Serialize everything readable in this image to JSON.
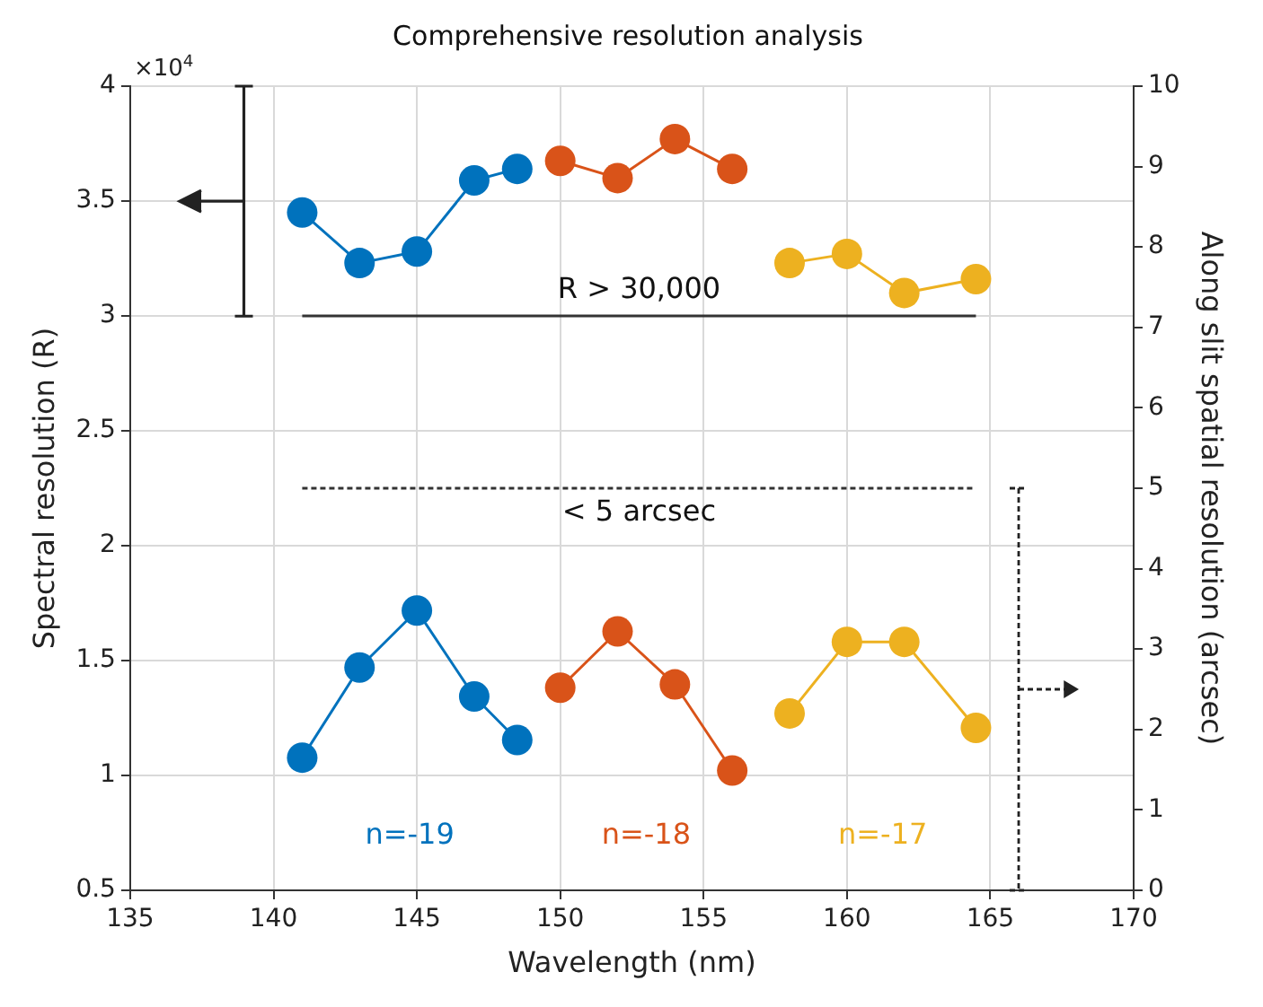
{
  "chart_data": {
    "type": "line",
    "title": "Comprehensive resolution analysis",
    "xlabel": "Wavelength (nm)",
    "ylabel": "Spectral resolution (R)",
    "y2label": "Along slit spatial resolution (arcsec)",
    "xlim": [
      135,
      170
    ],
    "xticks": [
      135,
      140,
      145,
      150,
      155,
      160,
      165,
      170
    ],
    "ylim": [
      0.5,
      4
    ],
    "yticks": [
      0.5,
      1,
      1.5,
      2,
      2.5,
      3,
      3.5,
      4
    ],
    "y2lim": [
      0,
      10
    ],
    "y2ticks": [
      0,
      1,
      2,
      3,
      4,
      5,
      6,
      7,
      8,
      9,
      10
    ],
    "grid": true,
    "marker": "circle",
    "series": [
      {
        "color": "#0072bd",
        "x": [
          141,
          143,
          145,
          147,
          148.5
        ],
        "values": [
          3.45,
          3.23,
          3.28,
          3.59,
          3.64
        ]
      },
      {
        "color": "#d95319",
        "x": [
          150,
          152,
          154,
          156
        ],
        "values": [
          3.675,
          3.6,
          3.77,
          3.64
        ]
      },
      {
        "color": "#edb120",
        "x": [
          158,
          160,
          162,
          164.5
        ],
        "values": [
          3.23,
          3.27,
          3.1,
          3.16
        ]
      },
      {
        "name": "n=-19",
        "color": "#0072bd",
        "axis": "y2",
        "x": [
          141,
          143,
          145,
          147,
          148.5
        ],
        "values": [
          1.65,
          2.77,
          3.48,
          2.41,
          1.87
        ]
      },
      {
        "name": "n=-18",
        "color": "#d95319",
        "axis": "y2",
        "x": [
          150,
          152,
          154,
          156
        ],
        "values": [
          2.52,
          3.22,
          2.56,
          1.49
        ]
      },
      {
        "name": "n=-17",
        "color": "#edb120",
        "axis": "y2",
        "x": [
          158,
          160,
          162,
          164.5
        ],
        "values": [
          2.2,
          3.09,
          3.09,
          2.02
        ]
      }
    ],
    "ref_lines": [
      {
        "axis": "y",
        "value": 3,
        "label": "R > 30,000",
        "color": "#333333",
        "line_style": "solid"
      },
      {
        "axis": "y2",
        "value": 5,
        "label": "< 5 arcsec",
        "color": "#333333",
        "line_style": "dotted"
      }
    ],
    "annotations": [
      "×10$^{4}$"
    ]
  }
}
